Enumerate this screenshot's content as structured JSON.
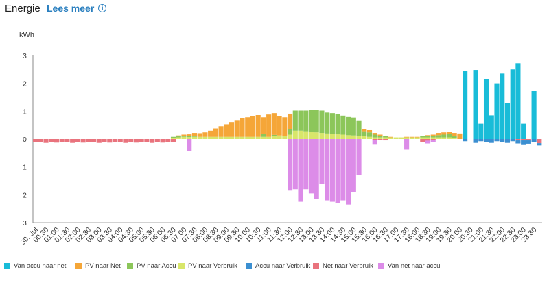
{
  "header": {
    "title": "Energie",
    "link_label": "Lees meer",
    "info_icon": "info-icon"
  },
  "colors": {
    "Van accu naar net": "#19bcd8",
    "PV naar Net": "#f5a638",
    "PV naar Accu": "#8cc65a",
    "PV naar Verbruik": "#d8e66a",
    "Accu naar Verbruik": "#3b8fd1",
    "Net naar Verbruik": "#e9737d",
    "Van net naar accu": "#dc8ce8"
  },
  "chart_data": {
    "type": "bar",
    "stacked": true,
    "ylabel": "kWh",
    "yticks": [
      "3",
      "2",
      "1",
      "0",
      "1",
      "2",
      "3"
    ],
    "ylim": [
      -3,
      3
    ],
    "grid": false,
    "legend_position": "bottom",
    "xtick_labels": [
      "30. Jul",
      "00:30",
      "01:00",
      "01:30",
      "02:00",
      "02:30",
      "03:00",
      "03:30",
      "04:00",
      "04:30",
      "05:00",
      "05:30",
      "06:00",
      "06:30",
      "07:00",
      "07:30",
      "08:00",
      "08:30",
      "09:00",
      "09:30",
      "10:00",
      "10:30",
      "11:00",
      "11:30",
      "12:00",
      "12:30",
      "13:00",
      "13:30",
      "14:00",
      "14:30",
      "15:00",
      "15:30",
      "16:00",
      "16:30",
      "17:00",
      "17:30",
      "18:00",
      "18:30",
      "19:00",
      "19:30",
      "20:00",
      "20:30",
      "21:00",
      "21:30",
      "22:00",
      "22:30",
      "23:00",
      "23:30"
    ],
    "interval_minutes": 15,
    "series": [
      {
        "name": "PV naar Verbruik",
        "values": [
          0,
          0,
          0,
          0,
          0,
          0,
          0,
          0,
          0,
          0,
          0,
          0,
          0,
          0,
          0,
          0,
          0,
          0,
          0,
          0,
          0,
          0,
          0,
          0,
          0,
          0,
          0,
          0,
          0,
          0,
          0,
          0,
          0,
          0,
          0,
          0,
          0,
          0,
          0,
          0,
          0,
          0,
          0,
          0,
          0,
          0,
          0,
          0,
          0,
          0,
          0,
          0,
          0,
          0,
          0,
          0,
          0,
          0,
          0,
          0,
          0,
          0,
          0,
          0,
          0,
          0,
          0,
          0,
          0,
          0,
          0,
          0,
          0,
          0,
          0,
          0,
          0,
          0,
          0,
          0,
          0,
          0,
          0,
          0,
          0,
          0,
          0,
          0,
          0,
          0,
          0,
          0,
          0,
          0,
          0,
          0
        ]
      },
      {
        "name": "PV naar Accu",
        "values": [
          0,
          0,
          0,
          0,
          0,
          0,
          0,
          0,
          0,
          0,
          0,
          0,
          0,
          0,
          0,
          0,
          0,
          0,
          0,
          0,
          0,
          0,
          0,
          0,
          0,
          0,
          0,
          0,
          0,
          0,
          0,
          0,
          0,
          0,
          0,
          0,
          0,
          0,
          0,
          0,
          0,
          0,
          0,
          0,
          0,
          0,
          0,
          0,
          0,
          0,
          0,
          0,
          0,
          0,
          0,
          0,
          0,
          0,
          0,
          0,
          0,
          0,
          0,
          0,
          0,
          0,
          0,
          0,
          0,
          0,
          0,
          0,
          0,
          0,
          0,
          0,
          0,
          0,
          0,
          0,
          0,
          0,
          0,
          0,
          0,
          0,
          0,
          0,
          0,
          0,
          0,
          0,
          0,
          0,
          0,
          0
        ]
      },
      {
        "name": "PV naar Net",
        "values": [
          0,
          0,
          0,
          0,
          0,
          0,
          0,
          0,
          0,
          0,
          0,
          0,
          0,
          0,
          0,
          0,
          0,
          0,
          0,
          0,
          0,
          0,
          0,
          0,
          0,
          0,
          0,
          0,
          0,
          0,
          0,
          0,
          0,
          0,
          0,
          0,
          0,
          0,
          0,
          0,
          0,
          0,
          0,
          0,
          0,
          0,
          0,
          0,
          0,
          0,
          0,
          0,
          0,
          0,
          0,
          0,
          0,
          0,
          0,
          0,
          0,
          0,
          0,
          0,
          0,
          0,
          0,
          0,
          0,
          0,
          0,
          0,
          0,
          0,
          0,
          0,
          0,
          0,
          0,
          0,
          0,
          0,
          0,
          0,
          0,
          0,
          0,
          0,
          0,
          0,
          0,
          0,
          0,
          0,
          0,
          0
        ]
      },
      {
        "name": "Van accu naar net",
        "values": [
          0,
          0,
          0,
          0,
          0,
          0,
          0,
          0,
          0,
          0,
          0,
          0,
          0,
          0,
          0,
          0,
          0,
          0,
          0,
          0,
          0,
          0,
          0,
          0,
          0,
          0,
          0,
          0,
          0,
          0,
          0,
          0,
          0,
          0,
          0,
          0,
          0,
          0,
          0,
          0,
          0,
          0,
          0,
          0,
          0,
          0,
          0,
          0,
          0,
          0,
          0,
          0,
          0,
          0,
          0,
          0,
          0,
          0,
          0,
          0,
          0,
          0,
          0,
          0,
          0,
          0,
          0,
          0,
          0,
          0,
          0,
          0,
          0,
          0,
          0,
          0,
          0,
          0,
          0,
          0,
          0,
          0,
          0,
          0,
          0,
          0,
          0,
          0,
          0,
          0,
          0,
          0,
          0,
          0,
          0,
          0
        ]
      },
      {
        "name": "Net naar Verbruik",
        "values": [
          0,
          0,
          0,
          0,
          0,
          0,
          0,
          0,
          0,
          0,
          0,
          0,
          0,
          0,
          0,
          0,
          0,
          0,
          0,
          0,
          0,
          0,
          0,
          0,
          0,
          0,
          0,
          0,
          0,
          0,
          0,
          0,
          0,
          0,
          0,
          0,
          0,
          0,
          0,
          0,
          0,
          0,
          0,
          0,
          0,
          0,
          0,
          0,
          0,
          0,
          0,
          0,
          0,
          0,
          0,
          0,
          0,
          0,
          0,
          0,
          0,
          0,
          0,
          0,
          0,
          0,
          0,
          0,
          0,
          0,
          0,
          0,
          0,
          0,
          0,
          0,
          0,
          0,
          0,
          0,
          0,
          0,
          0,
          0,
          0,
          0,
          0,
          0,
          0,
          0,
          0,
          0,
          0,
          0,
          0,
          0
        ]
      },
      {
        "name": "Accu naar Verbruik",
        "values": [
          0,
          0,
          0,
          0,
          0,
          0,
          0,
          0,
          0,
          0,
          0,
          0,
          0,
          0,
          0,
          0,
          0,
          0,
          0,
          0,
          0,
          0,
          0,
          0,
          0,
          0,
          0,
          0,
          0,
          0,
          0,
          0,
          0,
          0,
          0,
          0,
          0,
          0,
          0,
          0,
          0,
          0,
          0,
          0,
          0,
          0,
          0,
          0,
          0,
          0,
          0,
          0,
          0,
          0,
          0,
          0,
          0,
          0,
          0,
          0,
          0,
          0,
          0,
          0,
          0,
          0,
          0,
          0,
          0,
          0,
          0,
          0,
          0,
          0,
          0,
          0,
          0,
          0,
          0,
          0,
          0,
          0,
          0,
          0,
          0,
          0,
          0,
          0,
          0,
          0,
          0,
          0,
          0,
          0,
          0,
          0
        ]
      },
      {
        "name": "Van net naar accu",
        "values": [
          0,
          0,
          0,
          0,
          0,
          0,
          0,
          0,
          0,
          0,
          0,
          0,
          0,
          0,
          0,
          0,
          0,
          0,
          0,
          0,
          0,
          0,
          0,
          0,
          0,
          0,
          0,
          0,
          0,
          0,
          0,
          0,
          0,
          0,
          0,
          0,
          0,
          0,
          0,
          0,
          0,
          0,
          0,
          0,
          0,
          0,
          0,
          0,
          0,
          0,
          0,
          0,
          0,
          0,
          0,
          0,
          0,
          0,
          0,
          0,
          0,
          0,
          0,
          0,
          0,
          0,
          0,
          0,
          0,
          0,
          0,
          0,
          0,
          0,
          0,
          0,
          0,
          0,
          0,
          0,
          0,
          0,
          0,
          0,
          0,
          0,
          0,
          0,
          0,
          0,
          0,
          0,
          0,
          0,
          0,
          0
        ]
      }
    ]
  },
  "legend": [
    "Van accu naar net",
    "PV naar Net",
    "PV naar Accu",
    "PV naar Verbruik",
    "Accu naar Verbruik",
    "Net naar Verbruik",
    "Van net naar accu"
  ]
}
